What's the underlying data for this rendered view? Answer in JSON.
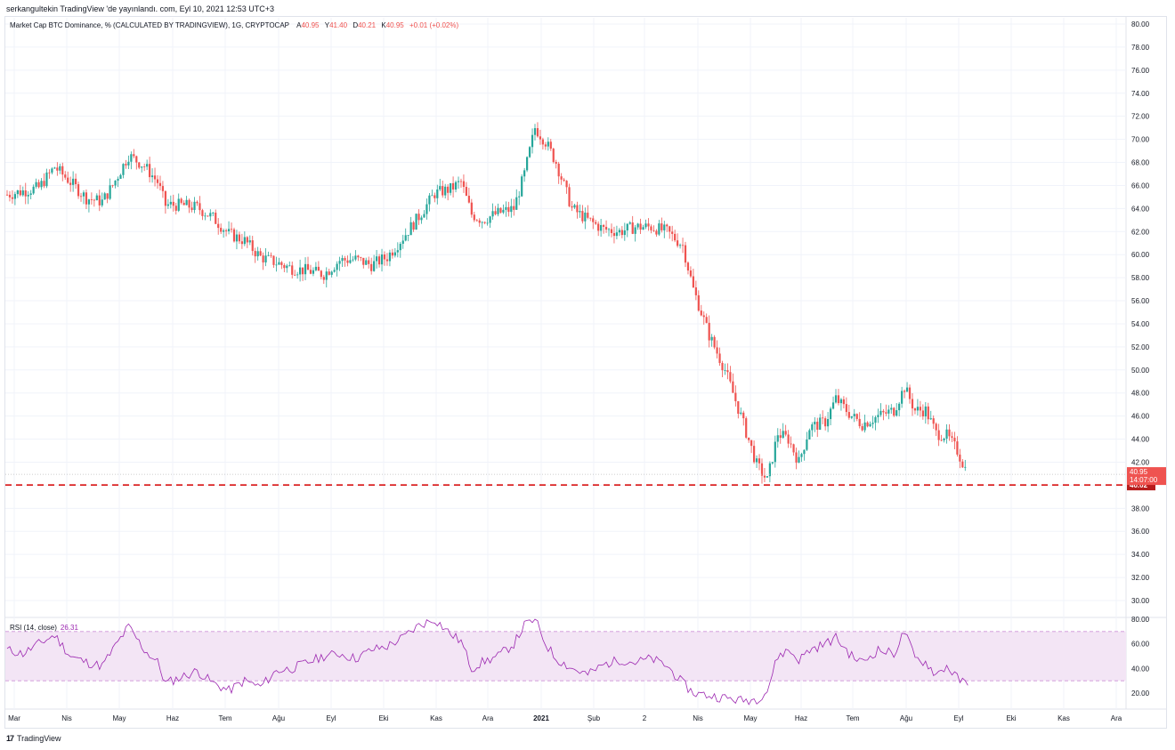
{
  "header": {
    "caption": "serkangultekin TradingView 'de yayınlandı. com, Eyl 10, 2021 12:53 UTC+3"
  },
  "legend": {
    "title": "Market Cap BTC Dominance, % (CALCULATED BY TRADINGVIEW), 1G, CRYPTOCAP",
    "open_label": "A",
    "open": "40.95",
    "high_label": "Y",
    "high": "41.40",
    "low_label": "D",
    "low": "40.21",
    "close_label": "K",
    "close": "40.95",
    "change": "+0.01 (+0.02%)"
  },
  "rsi_legend": {
    "title": "RSI (14, close)",
    "value": "26.31"
  },
  "footer": {
    "logo": "17",
    "brand": "TradingView"
  },
  "colors": {
    "up": "#26a69a",
    "down": "#ef5350",
    "rsi": "#9c27b0",
    "band": "#f3e5f5",
    "support": "#d50000"
  },
  "chart_data": [
    {
      "type": "candlestick",
      "ylim": [
        28,
        80
      ],
      "y_ticks": [
        "80.00",
        "78.00",
        "76.00",
        "74.00",
        "72.00",
        "70.00",
        "68.00",
        "66.00",
        "64.00",
        "62.00",
        "60.00",
        "58.00",
        "56.00",
        "54.00",
        "52.00",
        "50.00",
        "48.00",
        "46.00",
        "44.00",
        "42.00",
        "40.00",
        "38.00",
        "36.00",
        "34.00",
        "32.00",
        "30.00"
      ],
      "x_ticks": [
        "Mar",
        "Nis",
        "May",
        "Haz",
        "Tem",
        "Ağu",
        "Eyl",
        "Eki",
        "Kas",
        "Ara",
        "2021",
        "Şub",
        "2",
        "Nis",
        "May",
        "Haz",
        "Tem",
        "Ağu",
        "Eyl",
        "Eki",
        "Kas",
        "Ara"
      ],
      "bold_ticks": [
        "2021"
      ],
      "grid": true,
      "price_label": "40.95",
      "countdown": "14:07:00",
      "support_level": 40.02,
      "support_label": "40.02",
      "close_series": [
        [
          0,
          65.2
        ],
        [
          0.3,
          65.5
        ],
        [
          0.6,
          65.8
        ],
        [
          0.9,
          67.6
        ],
        [
          1.2,
          66.3
        ],
        [
          1.5,
          64.9
        ],
        [
          1.8,
          64.6
        ],
        [
          2.0,
          66.0
        ],
        [
          2.3,
          68.6
        ],
        [
          2.6,
          67.7
        ],
        [
          2.85,
          66.3
        ],
        [
          3.0,
          64.3
        ],
        [
          3.3,
          64.3
        ],
        [
          3.6,
          64.1
        ],
        [
          3.9,
          63.2
        ],
        [
          4.2,
          61.8
        ],
        [
          4.5,
          61.2
        ],
        [
          4.8,
          59.8
        ],
        [
          5.1,
          59.3
        ],
        [
          5.4,
          58.8
        ],
        [
          5.7,
          58.6
        ],
        [
          6.0,
          58.3
        ],
        [
          6.3,
          59.5
        ],
        [
          6.6,
          59.6
        ],
        [
          6.9,
          59.1
        ],
        [
          7.2,
          59.8
        ],
        [
          7.5,
          61.5
        ],
        [
          7.8,
          63.3
        ],
        [
          8.1,
          65.3
        ],
        [
          8.4,
          65.7
        ],
        [
          8.6,
          66.3
        ],
        [
          8.8,
          63.5
        ],
        [
          9.0,
          63.0
        ],
        [
          9.3,
          63.6
        ],
        [
          9.6,
          64.0
        ],
        [
          9.8,
          67.0
        ],
        [
          10.0,
          71.0
        ],
        [
          10.2,
          69.8
        ],
        [
          10.4,
          68.0
        ],
        [
          10.7,
          64.0
        ],
        [
          11.0,
          63.0
        ],
        [
          11.3,
          62.2
        ],
        [
          11.6,
          62.0
        ],
        [
          11.9,
          62.4
        ],
        [
          12.2,
          62.4
        ],
        [
          12.5,
          62.0
        ],
        [
          12.8,
          60.8
        ],
        [
          13.0,
          57.0
        ],
        [
          13.3,
          53.0
        ],
        [
          13.6,
          50.0
        ],
        [
          13.9,
          46.0
        ],
        [
          14.2,
          41.8
        ],
        [
          14.4,
          40.4
        ],
        [
          14.6,
          44.5
        ],
        [
          14.8,
          44.0
        ],
        [
          15.0,
          42.0
        ],
        [
          15.2,
          45.0
        ],
        [
          15.5,
          45.5
        ],
        [
          15.7,
          47.5
        ],
        [
          16.0,
          46.0
        ],
        [
          16.2,
          45.3
        ],
        [
          16.5,
          46.0
        ],
        [
          16.8,
          46.5
        ],
        [
          17.0,
          48.5
        ],
        [
          17.2,
          46.5
        ],
        [
          17.4,
          46.5
        ],
        [
          17.6,
          44.5
        ],
        [
          17.8,
          44.3
        ],
        [
          18.0,
          43.0
        ],
        [
          18.2,
          40.95
        ]
      ]
    },
    {
      "type": "line",
      "title": "RSI (14, close)",
      "ylim": [
        10,
        80
      ],
      "y_ticks": [
        "80.00",
        "60.00",
        "40.00",
        "20.00"
      ],
      "band": [
        30,
        70
      ],
      "series": [
        [
          0,
          55
        ],
        [
          0.3,
          52
        ],
        [
          0.6,
          60
        ],
        [
          0.9,
          67
        ],
        [
          1.2,
          50
        ],
        [
          1.5,
          45
        ],
        [
          1.8,
          42
        ],
        [
          2.0,
          55
        ],
        [
          2.3,
          74
        ],
        [
          2.6,
          55
        ],
        [
          2.85,
          45
        ],
        [
          3.0,
          28
        ],
        [
          3.3,
          33
        ],
        [
          3.6,
          38
        ],
        [
          3.9,
          28
        ],
        [
          4.2,
          22
        ],
        [
          4.5,
          30
        ],
        [
          4.8,
          25
        ],
        [
          5.1,
          38
        ],
        [
          5.4,
          40
        ],
        [
          5.7,
          45
        ],
        [
          6.0,
          50
        ],
        [
          6.3,
          52
        ],
        [
          6.6,
          48
        ],
        [
          6.9,
          55
        ],
        [
          7.2,
          58
        ],
        [
          7.5,
          65
        ],
        [
          7.8,
          75
        ],
        [
          8.1,
          80
        ],
        [
          8.4,
          68
        ],
        [
          8.6,
          62
        ],
        [
          8.8,
          40
        ],
        [
          9.0,
          45
        ],
        [
          9.3,
          50
        ],
        [
          9.6,
          60
        ],
        [
          9.8,
          75
        ],
        [
          10.0,
          80
        ],
        [
          10.2,
          60
        ],
        [
          10.4,
          48
        ],
        [
          10.7,
          40
        ],
        [
          11.0,
          35
        ],
        [
          11.3,
          43
        ],
        [
          11.6,
          47
        ],
        [
          11.9,
          45
        ],
        [
          12.2,
          48
        ],
        [
          12.5,
          42
        ],
        [
          12.8,
          28
        ],
        [
          13.0,
          20
        ],
        [
          13.3,
          18
        ],
        [
          13.6,
          16
        ],
        [
          13.9,
          14
        ],
        [
          14.2,
          15
        ],
        [
          14.4,
          22
        ],
        [
          14.6,
          50
        ],
        [
          14.8,
          55
        ],
        [
          15.0,
          47
        ],
        [
          15.2,
          55
        ],
        [
          15.5,
          60
        ],
        [
          15.7,
          65
        ],
        [
          16.0,
          50
        ],
        [
          16.2,
          45
        ],
        [
          16.5,
          55
        ],
        [
          16.8,
          52
        ],
        [
          17.0,
          70
        ],
        [
          17.2,
          48
        ],
        [
          17.4,
          45
        ],
        [
          17.6,
          35
        ],
        [
          17.8,
          42
        ],
        [
          18.0,
          32
        ],
        [
          18.2,
          26.31
        ]
      ]
    }
  ]
}
